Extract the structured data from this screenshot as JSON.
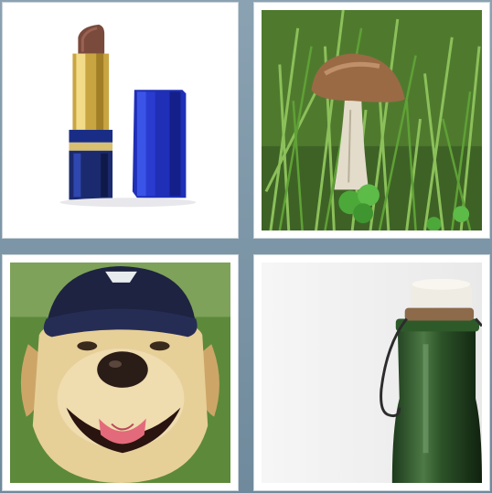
{
  "puzzle": {
    "tiles": [
      {
        "subject": "lipstick-image"
      },
      {
        "subject": "mushroom-image"
      },
      {
        "subject": "dog-image"
      },
      {
        "subject": "bottle-image"
      }
    ]
  },
  "colors": {
    "frame": "#7e97a8",
    "tile_border": "#ffffff"
  }
}
